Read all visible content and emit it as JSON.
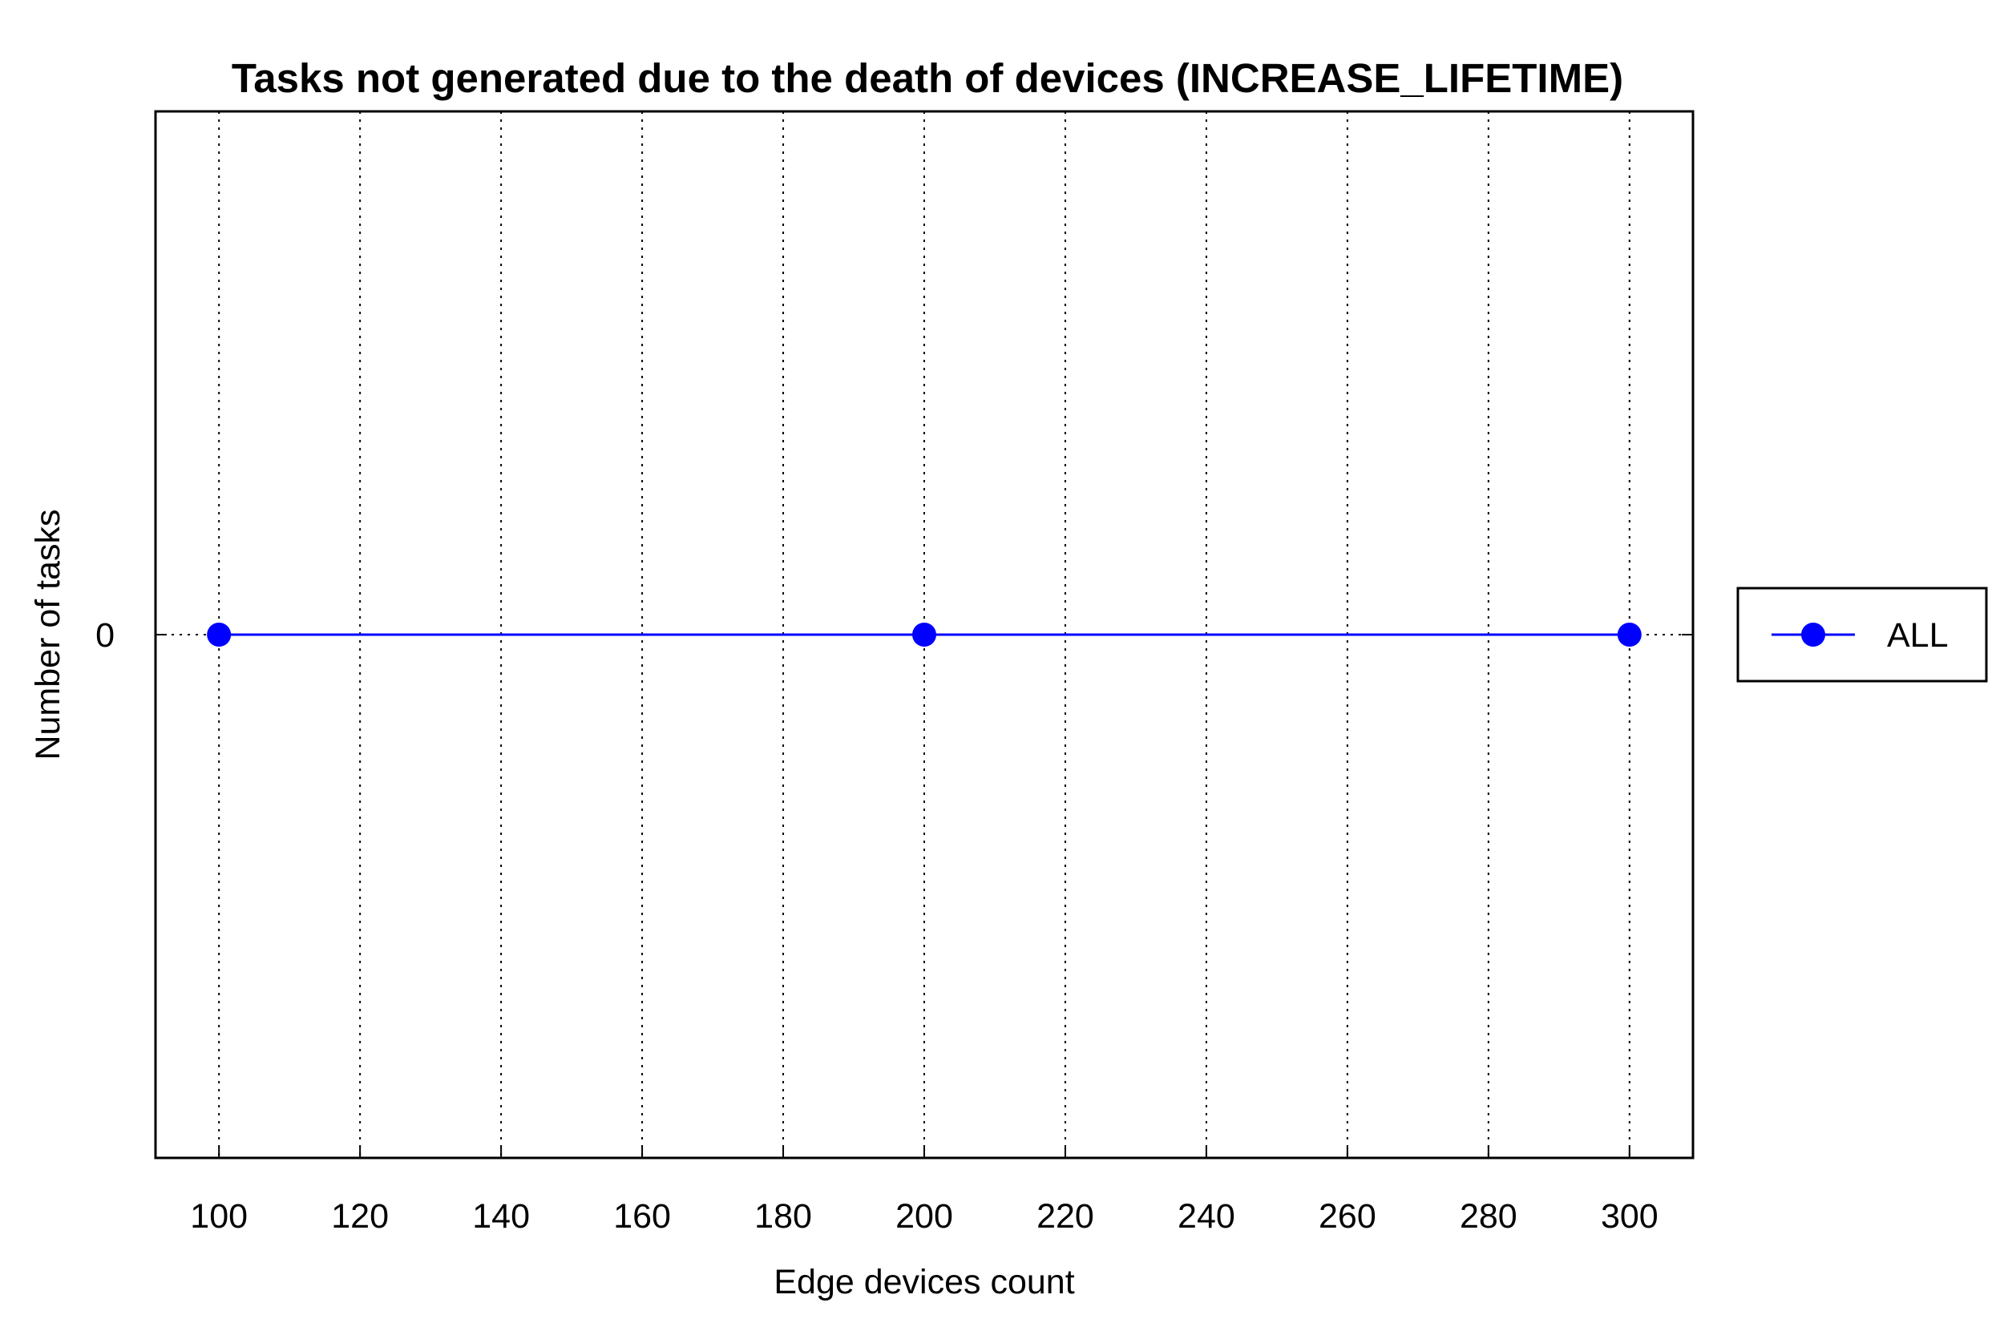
{
  "chart_data": {
    "type": "line",
    "title": "Tasks not generated due to the death of devices (INCREASE_LIFETIME)",
    "xlabel": "Edge devices count",
    "ylabel": "Number of tasks",
    "xlim": [
      91,
      309
    ],
    "ylim": [
      -1,
      1
    ],
    "x_ticks": [
      100,
      120,
      140,
      160,
      180,
      200,
      220,
      240,
      260,
      280,
      300
    ],
    "x_tick_labels": [
      "100",
      "120",
      "140",
      "160",
      "180",
      "200",
      "220",
      "240",
      "260",
      "280",
      "300"
    ],
    "y_ticks": [
      0
    ],
    "y_tick_labels": [
      "0"
    ],
    "grid": {
      "x": true,
      "y": true,
      "style": "dotted"
    },
    "legend_position": "outside-right",
    "series": [
      {
        "name": "ALL",
        "color": "#0000ff",
        "marker": "circle",
        "x": [
          100,
          200,
          300
        ],
        "y": [
          0,
          0,
          0
        ]
      }
    ]
  }
}
